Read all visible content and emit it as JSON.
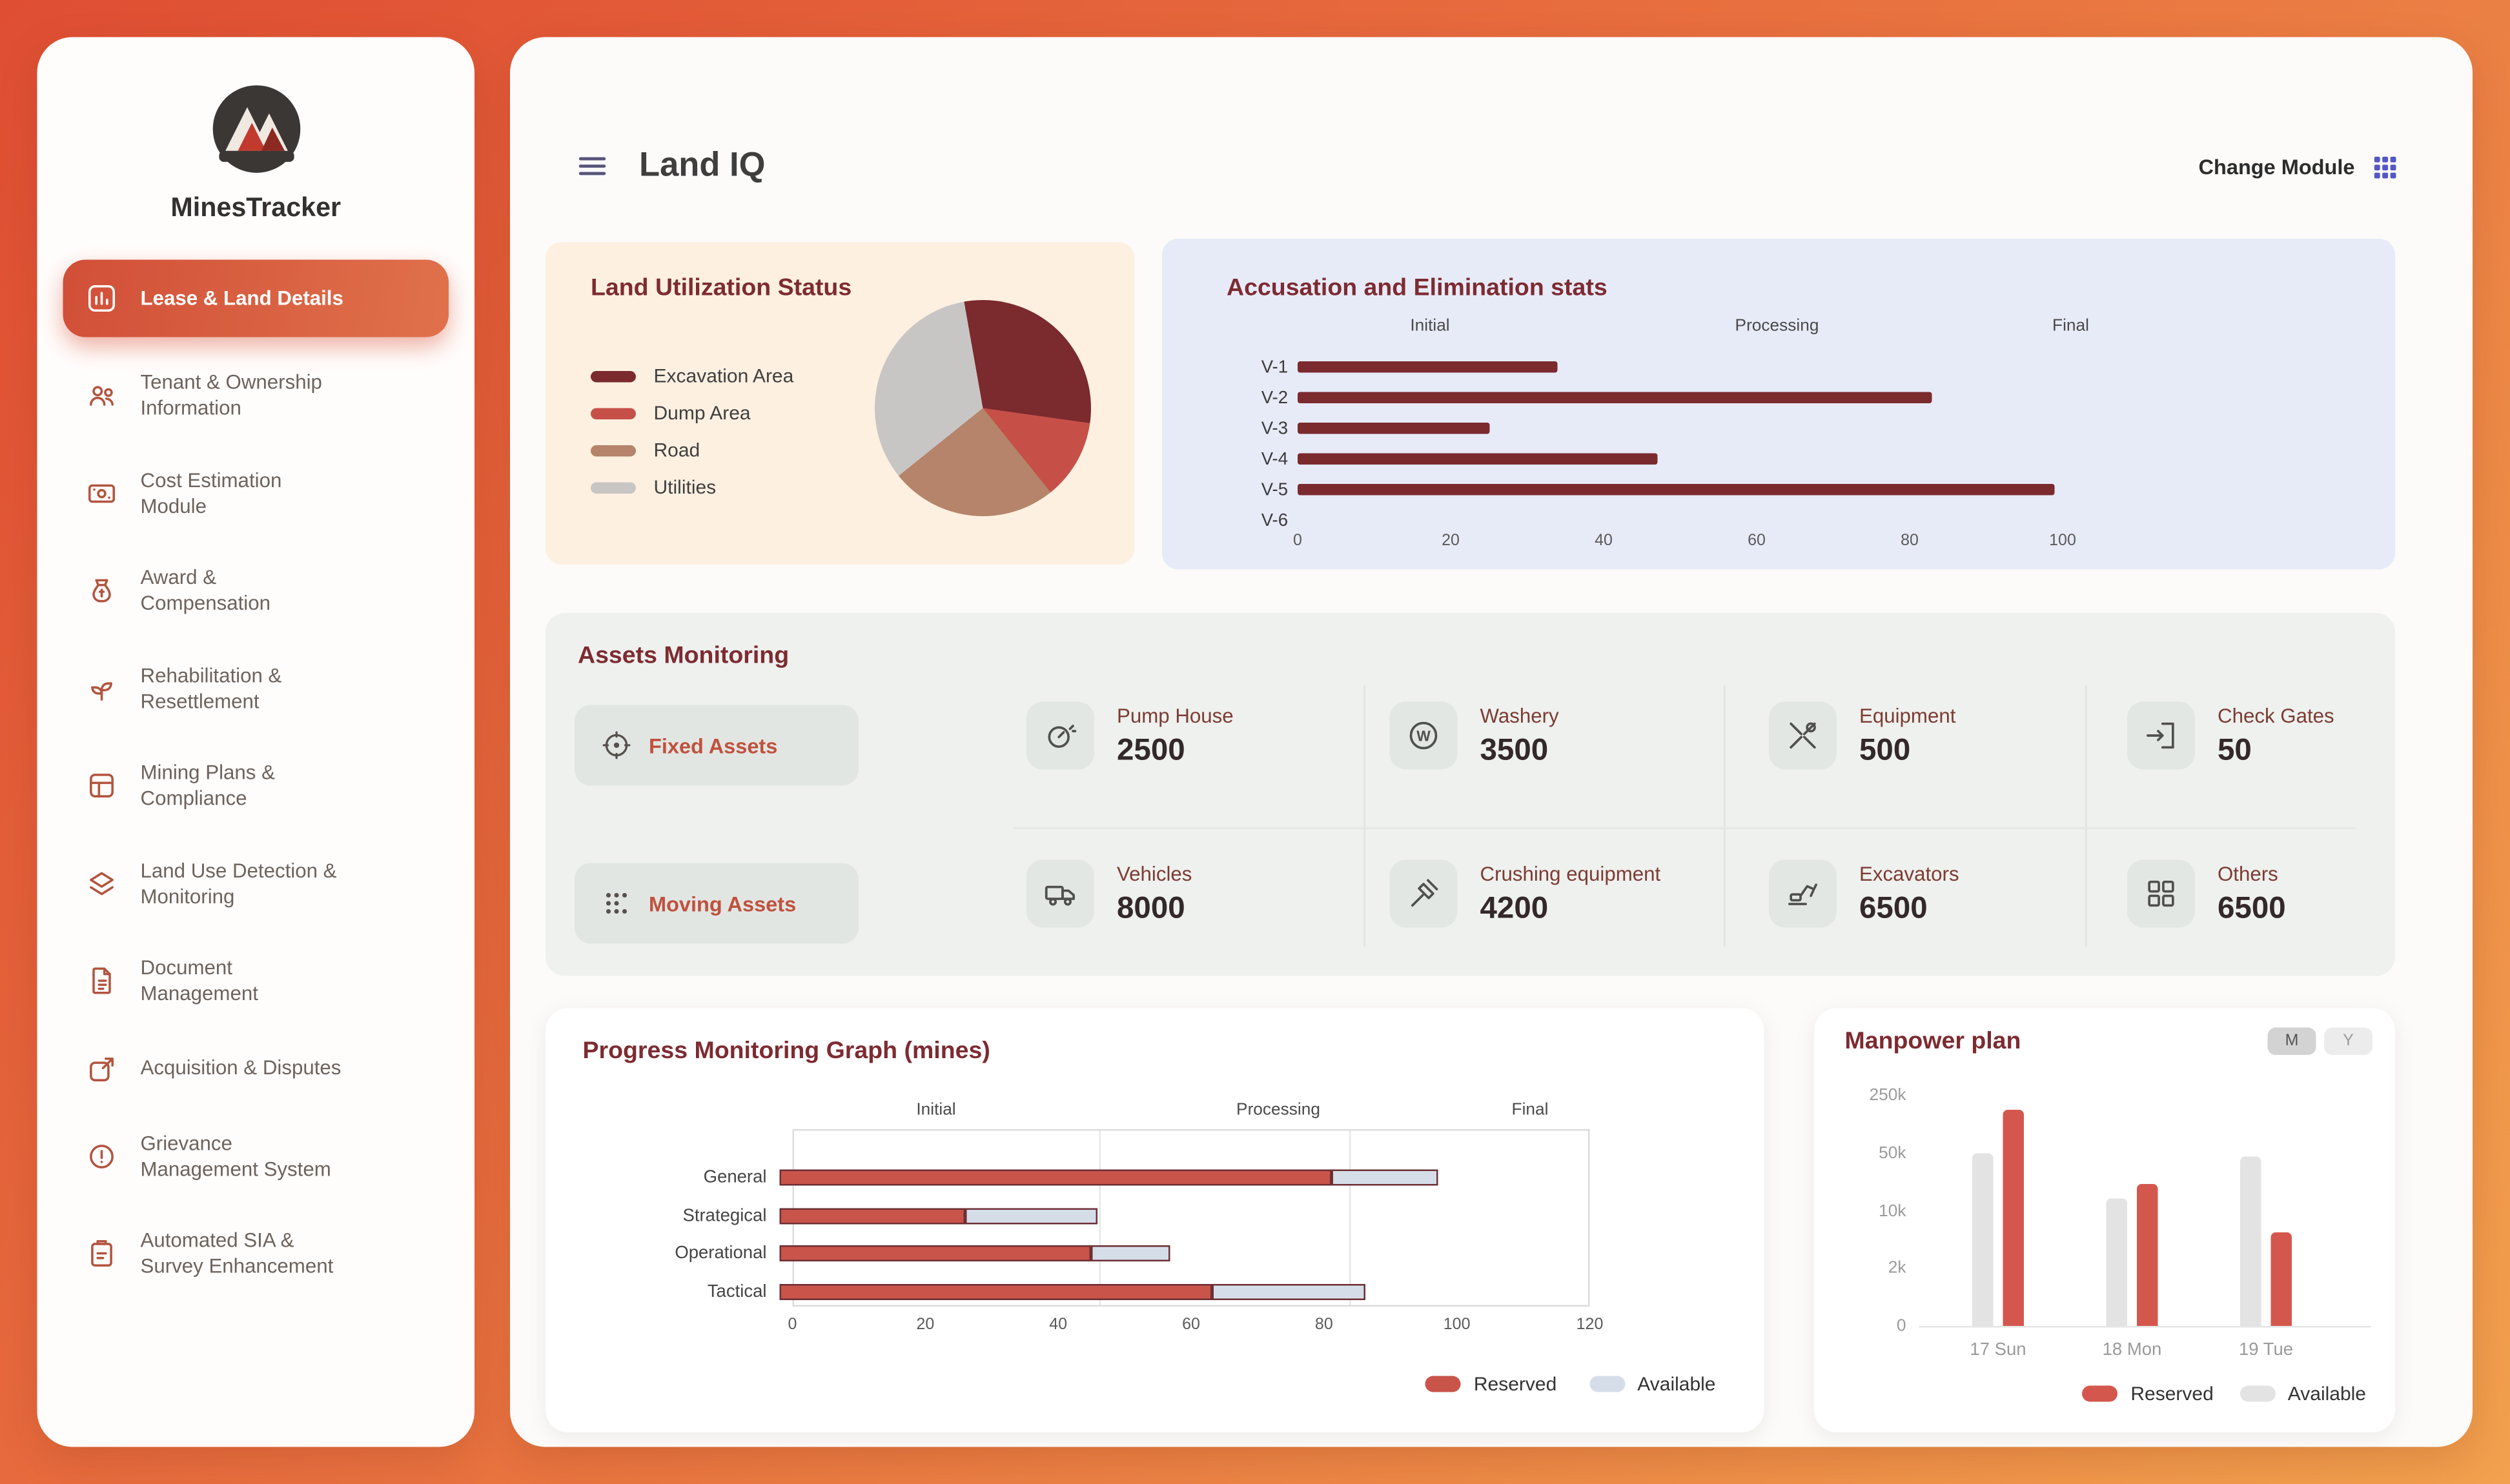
{
  "brand": {
    "name": "MinesTracker"
  },
  "header": {
    "title": "Land IQ",
    "change_module_label": "Change Module"
  },
  "sidebar": {
    "items": [
      {
        "label": "Lease & Land Details",
        "active": true
      },
      {
        "label": "Tenant & Ownership Information",
        "active": false
      },
      {
        "label": "Cost Estimation Module",
        "active": false
      },
      {
        "label": "Award & Compensation",
        "active": false
      },
      {
        "label": "Rehabilitation & Resettlement",
        "active": false
      },
      {
        "label": "Mining Plans & Compliance",
        "active": false
      },
      {
        "label": "Land Use Detection & Monitoring",
        "active": false
      },
      {
        "label": "Document Management",
        "active": false
      },
      {
        "label": "Acquisition & Disputes",
        "active": false
      },
      {
        "label": "Grievance Management System",
        "active": false
      },
      {
        "label": "Automated SIA & Survey Enhancement",
        "active": false
      }
    ]
  },
  "land_utilization": {
    "title": "Land Utilization Status"
  },
  "accusation": {
    "title": "Accusation and Elimination stats"
  },
  "assets": {
    "title": "Assets Monitoring",
    "tabs": [
      {
        "label": "Fixed Assets"
      },
      {
        "label": "Moving Assets"
      }
    ],
    "stats": [
      {
        "label": "Pump House",
        "value": "2500",
        "icon": "pump-house-icon"
      },
      {
        "label": "Washery",
        "value": "3500",
        "icon": "washery-icon"
      },
      {
        "label": "Equipment",
        "value": "500",
        "icon": "equipment-icon"
      },
      {
        "label": "Check Gates",
        "value": "50",
        "icon": "check-gates-icon"
      },
      {
        "label": "Vehicles",
        "value": "8000",
        "icon": "vehicles-icon"
      },
      {
        "label": "Crushing equipment",
        "value": "4200",
        "icon": "crushing-equipment-icon"
      },
      {
        "label": "Excavators",
        "value": "6500",
        "icon": "excavators-icon"
      },
      {
        "label": "Others",
        "value": "6500",
        "icon": "others-icon"
      }
    ]
  },
  "progress": {
    "title": "Progress Monitoring Graph (mines)"
  },
  "manpower": {
    "title": "Manpower plan",
    "toggles": [
      "M",
      "Y"
    ]
  },
  "icons": {
    "menu-icon": "hamburger-three-lines",
    "apps-grid-icon": "3x3-grid",
    "fixed-assets-icon": "target",
    "moving-assets-icon": "dots-grid",
    "pump-house-icon": "gauge",
    "washery-icon": "circled-W",
    "equipment-icon": "tools",
    "check-gates-icon": "door-arrow",
    "vehicles-icon": "truck",
    "crushing-equipment-icon": "hammer",
    "excavators-icon": "excavator",
    "others-icon": "four-squares"
  },
  "chart_data": [
    {
      "id": "land-utilization-pie",
      "type": "pie",
      "title": "Land Utilization Status",
      "labels": [
        "Excavation Area",
        "Dump Area",
        "Road",
        "Utilities"
      ],
      "values": [
        30,
        12,
        25,
        33
      ],
      "colors": [
        "#7b2a2e",
        "#c65048",
        "#b5846b",
        "#c8c6c4"
      ],
      "start_angle_deg": -10,
      "legend_position": "left"
    },
    {
      "id": "accusation-elimination-bars",
      "type": "bar",
      "orientation": "horizontal",
      "title": "Accusation and Elimination stats",
      "phase_headers": [
        "Initial",
        "Processing",
        "Final"
      ],
      "categories": [
        "V-1",
        "V-2",
        "V-3",
        "V-4",
        "V-5",
        "V-6"
      ],
      "values": [
        34,
        83,
        25,
        47,
        99,
        0
      ],
      "xlim": [
        0,
        100
      ],
      "x_ticks": [
        0,
        20,
        40,
        60,
        80,
        100
      ],
      "bar_color": "#7b2a2e"
    },
    {
      "id": "progress-monitoring-stacked",
      "type": "bar",
      "orientation": "horizontal",
      "stacked": true,
      "title": "Progress Monitoring Graph (mines)",
      "phase_headers": [
        "Initial",
        "Processing",
        "Final"
      ],
      "categories": [
        "General",
        "Strategical",
        "Operational",
        "Tactical"
      ],
      "series": [
        {
          "name": "Reserved",
          "values": [
            83,
            28,
            47,
            65
          ],
          "color": "#c9544a"
        },
        {
          "name": "Available",
          "values": [
            16,
            20,
            12,
            23
          ],
          "color": "#d5dee8"
        }
      ],
      "xlim": [
        0,
        120
      ],
      "x_ticks": [
        0,
        20,
        40,
        60,
        80,
        100,
        120
      ],
      "legend_position": "bottom-right"
    },
    {
      "id": "manpower-plan",
      "type": "bar",
      "orientation": "vertical",
      "title": "Manpower plan",
      "categories": [
        "17 Sun",
        "18 Mon",
        "19 Tue"
      ],
      "series": [
        {
          "name": "Available",
          "values": [
            50000,
            18000,
            48000
          ],
          "color": "#e3e3e3"
        },
        {
          "name": "Reserved",
          "values": [
            200000,
            28000,
            7000
          ],
          "color": "#d4574e"
        }
      ],
      "y_ticks": [
        {
          "label": "0",
          "value": 0
        },
        {
          "label": "2k",
          "value": 2000
        },
        {
          "label": "10k",
          "value": 10000
        },
        {
          "label": "50k",
          "value": 50000
        },
        {
          "label": "250k",
          "value": 250000
        }
      ],
      "legend_position": "bottom-right"
    }
  ]
}
